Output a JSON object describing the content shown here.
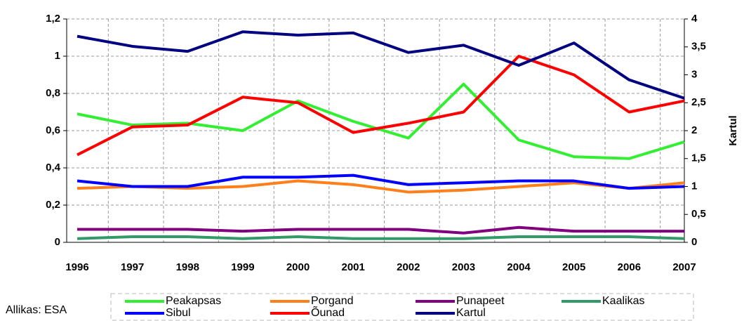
{
  "chart_data": {
    "type": "line",
    "categories": [
      "1996",
      "1997",
      "1998",
      "1999",
      "2000",
      "2001",
      "2002",
      "2003",
      "2004",
      "2005",
      "2006",
      "2007"
    ],
    "series": [
      {
        "name": "Peakapsas",
        "color": "#33ee33",
        "values": [
          0.69,
          0.63,
          0.64,
          0.6,
          0.76,
          0.65,
          0.56,
          0.85,
          0.55,
          0.46,
          0.45,
          0.54
        ]
      },
      {
        "name": "Porgand",
        "color": "#ff7f1a",
        "values": [
          0.29,
          0.3,
          0.29,
          0.3,
          0.33,
          0.31,
          0.27,
          0.28,
          0.3,
          0.32,
          0.29,
          0.32
        ]
      },
      {
        "name": "Punapeet",
        "color": "#800080",
        "values": [
          0.07,
          0.07,
          0.07,
          0.06,
          0.07,
          0.07,
          0.07,
          0.05,
          0.08,
          0.06,
          0.06,
          0.06
        ]
      },
      {
        "name": "Kaalikas",
        "color": "#339966",
        "values": [
          0.02,
          0.03,
          0.03,
          0.02,
          0.03,
          0.02,
          0.02,
          0.02,
          0.03,
          0.03,
          0.03,
          0.02
        ]
      },
      {
        "name": "Sibul",
        "color": "#0000ff",
        "values": [
          0.33,
          0.3,
          0.3,
          0.35,
          0.35,
          0.36,
          0.31,
          0.32,
          0.33,
          0.33,
          0.29,
          0.3
        ]
      },
      {
        "name": "Õunad",
        "color": "#ff0000",
        "values": [
          0.47,
          0.62,
          0.63,
          0.78,
          0.75,
          0.59,
          0.64,
          0.7,
          1.0,
          0.9,
          0.7,
          0.76
        ]
      },
      {
        "name": "Kartul",
        "color": "#000080",
        "axis": "y2",
        "values": [
          3.69,
          3.51,
          3.42,
          3.77,
          3.71,
          3.75,
          3.4,
          3.53,
          3.17,
          3.57,
          2.91,
          2.58
        ]
      }
    ],
    "ylim": [
      0,
      1.2
    ],
    "yticks": [
      0,
      {
        "value": 0.2,
        "label": "0,2"
      },
      {
        "value": 0.4,
        "label": "0,4"
      },
      {
        "value": 0.6,
        "label": "0,6"
      },
      {
        "value": 0.8,
        "label": "0,8"
      },
      1,
      {
        "value": 1.2,
        "label": "1,2"
      }
    ],
    "y2lim": [
      0,
      4
    ],
    "y2ticks": [
      0,
      {
        "value": 0.5,
        "label": "0,5"
      },
      1,
      {
        "value": 1.5,
        "label": "1,5"
      },
      2,
      {
        "value": 2.5,
        "label": "2,5"
      },
      3,
      {
        "value": 3.5,
        "label": "3,5"
      },
      4
    ],
    "y2label": "Kartul",
    "source": "Allikas: ESA",
    "grid": true
  }
}
